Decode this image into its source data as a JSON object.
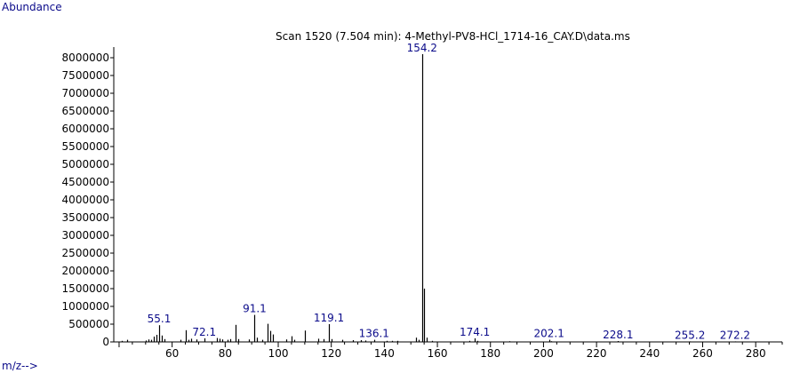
{
  "chart_data": {
    "type": "bar",
    "title": "Scan 1520 (7.504 min): 4-Methyl-PV8-HCl_1714-16_CAY.D\\data.ms",
    "xlabel": "m/z-->",
    "ylabel": "Abundance",
    "xlim": [
      38,
      290
    ],
    "ylim": [
      0,
      8300000
    ],
    "x_ticks": [
      60,
      80,
      100,
      120,
      140,
      160,
      180,
      200,
      220,
      240,
      260,
      280
    ],
    "y_ticks": [
      500000,
      1000000,
      1500000,
      2000000,
      2500000,
      3000000,
      3500000,
      4000000,
      4500000,
      5000000,
      5500000,
      6000000,
      6500000,
      7000000,
      7500000,
      8000000
    ],
    "peaks": [
      {
        "mz": 41,
        "abundance": 30000
      },
      {
        "mz": 43,
        "abundance": 60000
      },
      {
        "mz": 50,
        "abundance": 40000
      },
      {
        "mz": 51,
        "abundance": 70000
      },
      {
        "mz": 52,
        "abundance": 60000
      },
      {
        "mz": 53,
        "abundance": 150000
      },
      {
        "mz": 54,
        "abundance": 200000
      },
      {
        "mz": 55.1,
        "abundance": 470000
      },
      {
        "mz": 56,
        "abundance": 180000
      },
      {
        "mz": 57,
        "abundance": 80000
      },
      {
        "mz": 63,
        "abundance": 60000
      },
      {
        "mz": 65,
        "abundance": 330000
      },
      {
        "mz": 66,
        "abundance": 60000
      },
      {
        "mz": 67,
        "abundance": 90000
      },
      {
        "mz": 69,
        "abundance": 70000
      },
      {
        "mz": 72.1,
        "abundance": 100000
      },
      {
        "mz": 77,
        "abundance": 110000
      },
      {
        "mz": 78,
        "abundance": 90000
      },
      {
        "mz": 79,
        "abundance": 70000
      },
      {
        "mz": 81,
        "abundance": 60000
      },
      {
        "mz": 82,
        "abundance": 80000
      },
      {
        "mz": 84,
        "abundance": 480000
      },
      {
        "mz": 85,
        "abundance": 80000
      },
      {
        "mz": 89,
        "abundance": 70000
      },
      {
        "mz": 91.1,
        "abundance": 760000
      },
      {
        "mz": 92,
        "abundance": 120000
      },
      {
        "mz": 94,
        "abundance": 60000
      },
      {
        "mz": 96,
        "abundance": 510000
      },
      {
        "mz": 97,
        "abundance": 310000
      },
      {
        "mz": 98,
        "abundance": 210000
      },
      {
        "mz": 103,
        "abundance": 70000
      },
      {
        "mz": 105,
        "abundance": 160000
      },
      {
        "mz": 106,
        "abundance": 60000
      },
      {
        "mz": 110,
        "abundance": 320000
      },
      {
        "mz": 115,
        "abundance": 90000
      },
      {
        "mz": 117,
        "abundance": 80000
      },
      {
        "mz": 119.1,
        "abundance": 500000
      },
      {
        "mz": 120,
        "abundance": 80000
      },
      {
        "mz": 124,
        "abundance": 60000
      },
      {
        "mz": 128,
        "abundance": 50000
      },
      {
        "mz": 131,
        "abundance": 50000
      },
      {
        "mz": 133,
        "abundance": 40000
      },
      {
        "mz": 136.1,
        "abundance": 60000
      },
      {
        "mz": 141,
        "abundance": 30000
      },
      {
        "mz": 143,
        "abundance": 30000
      },
      {
        "mz": 145,
        "abundance": 30000
      },
      {
        "mz": 152,
        "abundance": 120000
      },
      {
        "mz": 153,
        "abundance": 60000
      },
      {
        "mz": 154.2,
        "abundance": 8100000
      },
      {
        "mz": 155,
        "abundance": 1500000
      },
      {
        "mz": 156,
        "abundance": 120000
      },
      {
        "mz": 158,
        "abundance": 30000
      },
      {
        "mz": 172,
        "abundance": 30000
      },
      {
        "mz": 174.1,
        "abundance": 100000
      },
      {
        "mz": 175,
        "abundance": 30000
      },
      {
        "mz": 187,
        "abundance": 20000
      },
      {
        "mz": 202.1,
        "abundance": 60000
      },
      {
        "mz": 203,
        "abundance": 20000
      },
      {
        "mz": 228.1,
        "abundance": 25000
      },
      {
        "mz": 255.2,
        "abundance": 15000
      },
      {
        "mz": 272.2,
        "abundance": 15000
      }
    ],
    "annotations": [
      {
        "mz": 55.1,
        "label": "55.1"
      },
      {
        "mz": 72.1,
        "label": "72.1"
      },
      {
        "mz": 91.1,
        "label": "91.1"
      },
      {
        "mz": 119.1,
        "label": "119.1"
      },
      {
        "mz": 136.1,
        "label": "136.1"
      },
      {
        "mz": 154.2,
        "label": "154.2"
      },
      {
        "mz": 174.1,
        "label": "174.1"
      },
      {
        "mz": 202.1,
        "label": "202.1"
      },
      {
        "mz": 228.1,
        "label": "228.1"
      },
      {
        "mz": 255.2,
        "label": "255.2"
      },
      {
        "mz": 272.2,
        "label": "272.2"
      }
    ],
    "grid": false
  },
  "colors": {
    "axis": "#000000",
    "peak": "#000000",
    "label": "#0b0b8a",
    "title": "#000000"
  }
}
